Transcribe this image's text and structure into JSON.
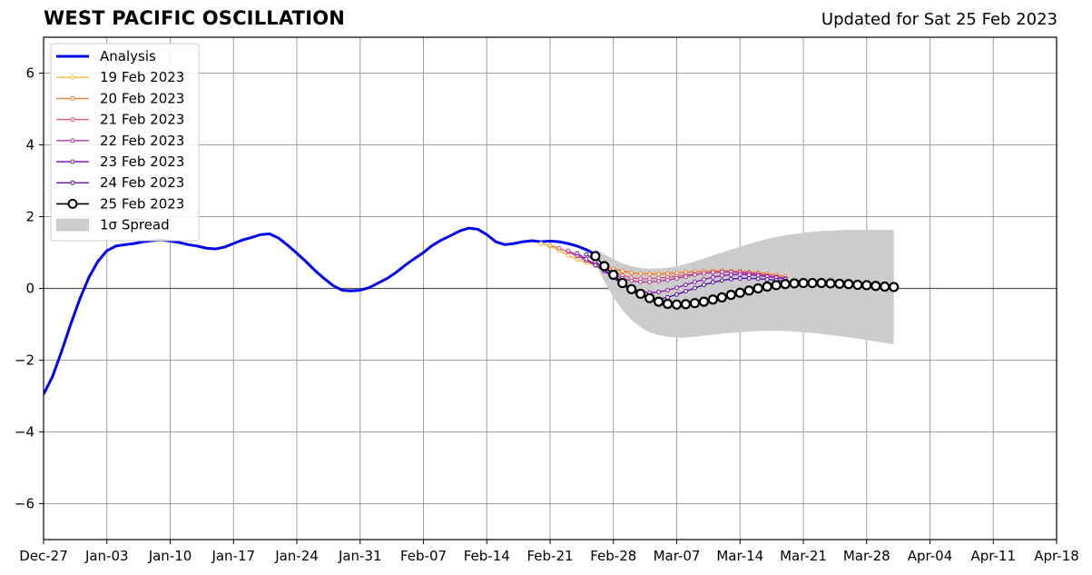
{
  "header": {
    "title": "WEST PACIFIC OSCILLATION",
    "updated": "Updated for Sat 25 Feb 2023"
  },
  "chart_data": {
    "type": "line",
    "title": "WEST PACIFIC OSCILLATION",
    "subtitle": "Updated for Sat 25 Feb 2023",
    "xlabel": "",
    "ylabel": "",
    "x_range_days": [
      0,
      112
    ],
    "ylim": [
      -7,
      7
    ],
    "grid": true,
    "legend_placement": "top-left",
    "x_ticks": [
      {
        "day": 0,
        "label": "Dec-27"
      },
      {
        "day": 7,
        "label": "Jan-03"
      },
      {
        "day": 14,
        "label": "Jan-10"
      },
      {
        "day": 21,
        "label": "Jan-17"
      },
      {
        "day": 28,
        "label": "Jan-24"
      },
      {
        "day": 35,
        "label": "Jan-31"
      },
      {
        "day": 42,
        "label": "Feb-07"
      },
      {
        "day": 49,
        "label": "Feb-14"
      },
      {
        "day": 56,
        "label": "Feb-21"
      },
      {
        "day": 63,
        "label": "Feb-28"
      },
      {
        "day": 70,
        "label": "Mar-07"
      },
      {
        "day": 77,
        "label": "Mar-14"
      },
      {
        "day": 84,
        "label": "Mar-21"
      },
      {
        "day": 91,
        "label": "Mar-28"
      },
      {
        "day": 98,
        "label": "Apr-04"
      },
      {
        "day": 105,
        "label": "Apr-11"
      },
      {
        "day": 112,
        "label": "Apr-18"
      }
    ],
    "y_ticks": [
      {
        "value": 6,
        "label": "6"
      },
      {
        "value": 4,
        "label": "4"
      },
      {
        "value": 2,
        "label": "2"
      },
      {
        "value": 0,
        "label": "0"
      },
      {
        "value": -2,
        "label": "−2"
      },
      {
        "value": -4,
        "label": "−4"
      },
      {
        "value": -6,
        "label": "−6"
      }
    ],
    "analysis": {
      "name": "Analysis",
      "color": "#0000ee",
      "start_day": 0,
      "values": [
        -2.95,
        -2.45,
        -1.75,
        -1.0,
        -0.3,
        0.3,
        0.75,
        1.05,
        1.18,
        1.22,
        1.25,
        1.3,
        1.33,
        1.35,
        1.32,
        1.28,
        1.22,
        1.18,
        1.12,
        1.1,
        1.15,
        1.25,
        1.35,
        1.42,
        1.5,
        1.52,
        1.4,
        1.2,
        0.98,
        0.75,
        0.5,
        0.28,
        0.08,
        -0.05,
        -0.07,
        -0.05,
        0.02,
        0.15,
        0.28,
        0.45,
        0.65,
        0.83,
        1.0,
        1.2,
        1.35,
        1.47,
        1.6,
        1.68,
        1.65,
        1.5,
        1.3,
        1.22,
        1.25,
        1.3,
        1.33,
        1.3,
        1.32,
        1.3,
        1.25,
        1.18,
        1.08,
        0.95
      ]
    },
    "forecasts": [
      {
        "name": "19 Feb 2023",
        "color": "#f5b63a",
        "start_day": 55,
        "values": [
          1.25,
          1.18,
          1.05,
          0.92,
          0.8,
          0.72,
          0.65,
          0.58,
          0.52,
          0.47,
          0.43,
          0.41,
          0.41,
          0.41,
          0.42,
          0.43,
          0.45,
          0.46,
          0.47,
          0.47,
          0.47,
          0.46,
          0.45,
          0.43,
          0.41,
          0.38,
          0.34,
          0.3
        ]
      },
      {
        "name": "20 Feb 2023",
        "color": "#ee8040",
        "start_day": 56,
        "values": [
          1.2,
          1.12,
          1.02,
          0.9,
          0.8,
          0.7,
          0.62,
          0.55,
          0.49,
          0.44,
          0.41,
          0.4,
          0.4,
          0.41,
          0.43,
          0.45,
          0.47,
          0.48,
          0.49,
          0.5,
          0.49,
          0.48,
          0.46,
          0.44,
          0.41,
          0.37,
          0.33
        ]
      },
      {
        "name": "21 Feb 2023",
        "color": "#dd5a78",
        "start_day": 57,
        "values": [
          1.12,
          1.02,
          0.9,
          0.78,
          0.66,
          0.55,
          0.44,
          0.36,
          0.3,
          0.27,
          0.27,
          0.29,
          0.31,
          0.34,
          0.37,
          0.4,
          0.42,
          0.44,
          0.45,
          0.45,
          0.44,
          0.42,
          0.39,
          0.36,
          0.32,
          0.28
        ]
      },
      {
        "name": "22 Feb 2023",
        "color": "#b33d98",
        "start_day": 58,
        "values": [
          1.05,
          0.92,
          0.78,
          0.64,
          0.5,
          0.38,
          0.28,
          0.21,
          0.18,
          0.18,
          0.2,
          0.23,
          0.28,
          0.33,
          0.38,
          0.42,
          0.45,
          0.46,
          0.46,
          0.45,
          0.43,
          0.4,
          0.36,
          0.32,
          0.28
        ]
      },
      {
        "name": "23 Feb 2023",
        "color": "#8c1bb5",
        "start_day": 59,
        "values": [
          0.98,
          0.82,
          0.65,
          0.48,
          0.3,
          0.14,
          0.0,
          -0.08,
          -0.12,
          -0.1,
          -0.05,
          0.02,
          0.1,
          0.18,
          0.25,
          0.31,
          0.36,
          0.38,
          0.39,
          0.38,
          0.36,
          0.33,
          0.3,
          0.26
        ]
      },
      {
        "name": "24 Feb 2023",
        "color": "#5312a8",
        "start_day": 60,
        "values": [
          0.95,
          0.75,
          0.52,
          0.3,
          0.1,
          -0.08,
          -0.2,
          -0.28,
          -0.3,
          -0.25,
          -0.17,
          -0.08,
          0.01,
          0.1,
          0.17,
          0.22,
          0.26,
          0.28,
          0.28,
          0.27,
          0.25,
          0.23,
          0.2
        ]
      }
    ],
    "series_final": {
      "name": "25 Feb 2023",
      "color": "#000000",
      "start_day": 61,
      "values": [
        0.9,
        0.62,
        0.38,
        0.15,
        -0.02,
        -0.15,
        -0.27,
        -0.37,
        -0.43,
        -0.45,
        -0.44,
        -0.41,
        -0.37,
        -0.31,
        -0.25,
        -0.18,
        -0.12,
        -0.06,
        0.0,
        0.05,
        0.09,
        0.12,
        0.14,
        0.15,
        0.15,
        0.15,
        0.14,
        0.13,
        0.12,
        0.1,
        0.09,
        0.07,
        0.05,
        0.04
      ]
    },
    "spread": {
      "name": "1σ Spread",
      "color": "#cccccc",
      "start_day": 61,
      "upper": [
        1.1,
        0.95,
        0.82,
        0.7,
        0.62,
        0.57,
        0.55,
        0.56,
        0.58,
        0.62,
        0.68,
        0.75,
        0.83,
        0.92,
        1.0,
        1.08,
        1.16,
        1.24,
        1.31,
        1.38,
        1.43,
        1.48,
        1.52,
        1.55,
        1.58,
        1.6,
        1.61,
        1.62,
        1.63,
        1.63,
        1.63,
        1.63,
        1.63,
        1.63
      ],
      "lower": [
        0.7,
        0.2,
        -0.25,
        -0.6,
        -0.88,
        -1.08,
        -1.22,
        -1.3,
        -1.35,
        -1.37,
        -1.37,
        -1.35,
        -1.32,
        -1.29,
        -1.26,
        -1.24,
        -1.22,
        -1.2,
        -1.19,
        -1.18,
        -1.18,
        -1.19,
        -1.2,
        -1.22,
        -1.24,
        -1.27,
        -1.3,
        -1.33,
        -1.36,
        -1.4,
        -1.44,
        -1.48,
        -1.52,
        -1.56
      ]
    },
    "legend": [
      {
        "label": "Analysis",
        "kind": "line",
        "color": "#0000ee"
      },
      {
        "label": "19 Feb 2023",
        "kind": "dotline",
        "color": "#f5b63a"
      },
      {
        "label": "20 Feb 2023",
        "kind": "dotline",
        "color": "#ee8040"
      },
      {
        "label": "21 Feb 2023",
        "kind": "dotline",
        "color": "#dd5a78"
      },
      {
        "label": "22 Feb 2023",
        "kind": "dotline",
        "color": "#b33d98"
      },
      {
        "label": "23 Feb 2023",
        "kind": "dotline",
        "color": "#8c1bb5"
      },
      {
        "label": "24 Feb 2023",
        "kind": "dotline",
        "color": "#5312a8"
      },
      {
        "label": "25 Feb 2023",
        "kind": "circleline",
        "color": "#000000"
      },
      {
        "label": "1σ Spread",
        "kind": "patch",
        "color": "#cccccc"
      }
    ]
  }
}
